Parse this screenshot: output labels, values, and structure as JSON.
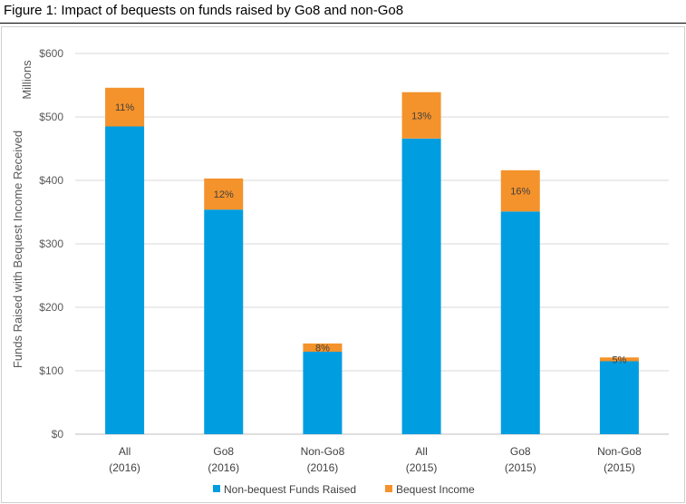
{
  "figure_title": "Figure 1: Impact of bequests on funds raised by Go8 and non-Go8",
  "chart_data": {
    "type": "bar",
    "stacked": true,
    "categories": [
      [
        "All",
        "(2016)"
      ],
      [
        "Go8",
        "(2016)"
      ],
      [
        "Non-Go8",
        "(2016)"
      ],
      [
        "All",
        "(2015)"
      ],
      [
        "Go8",
        "(2015)"
      ],
      [
        "Non-Go8",
        "(2015)"
      ]
    ],
    "series": [
      {
        "name": "Non-bequest Funds Raised",
        "color": "#009ee0",
        "values": [
          485,
          354,
          130,
          466,
          351,
          115
        ]
      },
      {
        "name": "Bequest Income",
        "color": "#f4922b",
        "values": [
          61,
          49,
          13,
          73,
          65,
          6
        ]
      }
    ],
    "data_labels": [
      "11%",
      "12%",
      "8%",
      "13%",
      "16%",
      "5%"
    ],
    "ylabel": "Funds Raised with Bequest Income Received",
    "yunit_label": "Millions",
    "ylim": [
      0,
      600
    ],
    "yticks": [
      0,
      100,
      200,
      300,
      400,
      500,
      600
    ],
    "ytick_labels": [
      "$0",
      "$100",
      "$200",
      "$300",
      "$400",
      "$500",
      "$600"
    ],
    "grid": true,
    "legend_position": "bottom"
  }
}
